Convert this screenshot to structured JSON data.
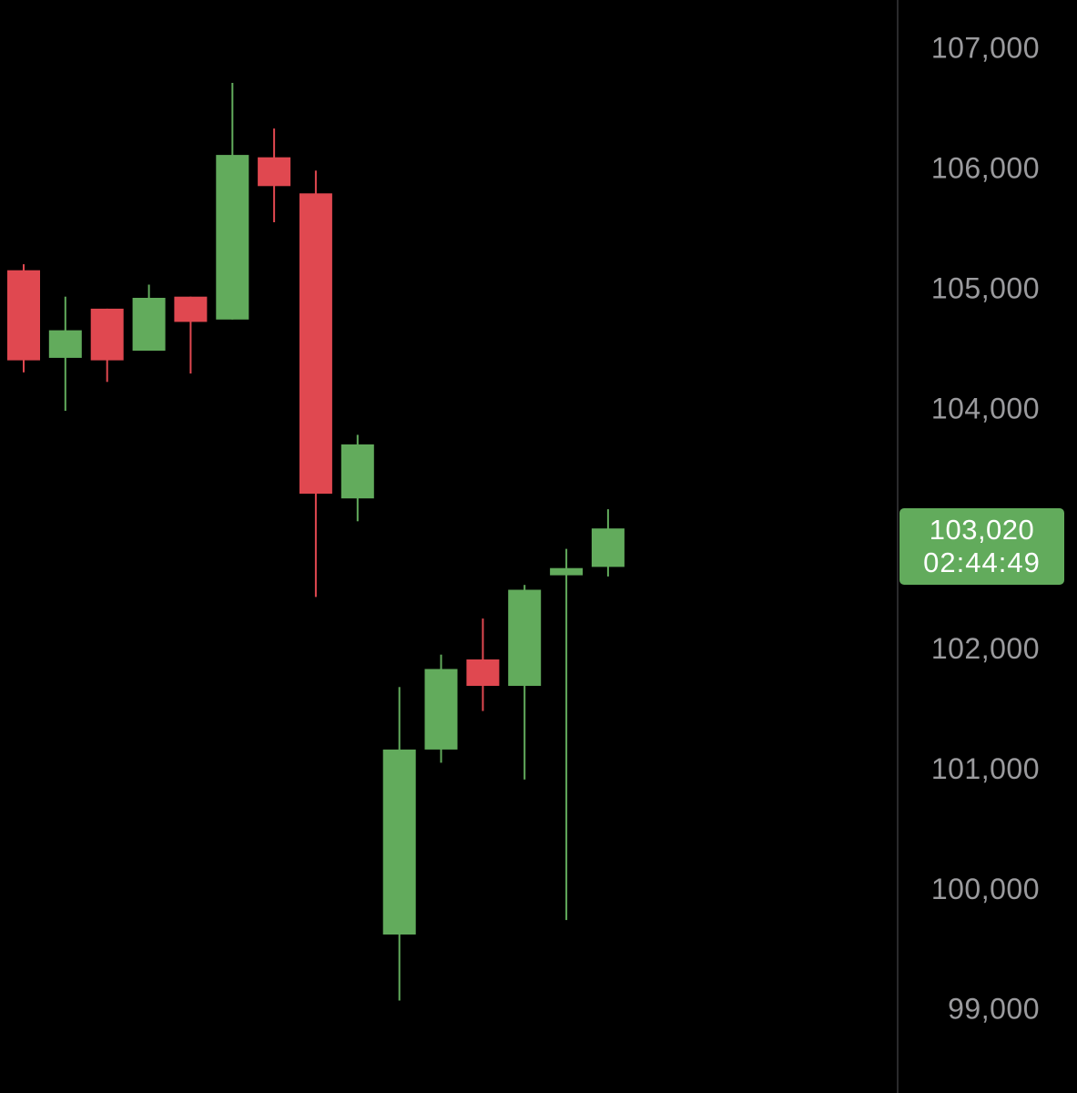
{
  "colors": {
    "background": "#000000",
    "up": "#62ab5c",
    "down": "#e04850",
    "axis_text": "#9b9b9e",
    "axis_line": "#2a2a2c"
  },
  "last_price": {
    "price": "103,020",
    "countdown": "02:44:49"
  },
  "chart_data": {
    "type": "candlestick",
    "y_ticks": [
      107000,
      106000,
      105000,
      104000,
      103000,
      102000,
      101000,
      100000,
      99000
    ],
    "y_tick_labels": [
      "107,000",
      "106,000",
      "105,000",
      "104,000",
      "103,000",
      "102,000",
      "101,000",
      "100,000",
      "99,000"
    ],
    "ylim": [
      98300,
      107400
    ],
    "candles": [
      {
        "open": 105150,
        "high": 105200,
        "low": 104300,
        "close": 104400
      },
      {
        "open": 104420,
        "high": 104930,
        "low": 103980,
        "close": 104650
      },
      {
        "open": 104830,
        "high": 104830,
        "low": 104220,
        "close": 104400
      },
      {
        "open": 104480,
        "high": 105030,
        "low": 104480,
        "close": 104920
      },
      {
        "open": 104930,
        "high": 104930,
        "low": 104290,
        "close": 104720
      },
      {
        "open": 104740,
        "high": 106710,
        "low": 104740,
        "close": 106110
      },
      {
        "open": 106090,
        "high": 106330,
        "low": 105550,
        "close": 105850
      },
      {
        "open": 105790,
        "high": 105980,
        "low": 102430,
        "close": 103290
      },
      {
        "open": 103250,
        "high": 103780,
        "low": 103060,
        "close": 103700
      },
      {
        "open": 99620,
        "high": 101680,
        "low": 99070,
        "close": 101160
      },
      {
        "open": 101160,
        "high": 101950,
        "low": 101050,
        "close": 101830
      },
      {
        "open": 101910,
        "high": 102250,
        "low": 101480,
        "close": 101690
      },
      {
        "open": 101690,
        "high": 102530,
        "low": 100910,
        "close": 102490
      },
      {
        "open": 102610,
        "high": 102830,
        "low": 99740,
        "close": 102670
      },
      {
        "open": 102680,
        "high": 103160,
        "low": 102600,
        "close": 103000
      }
    ]
  }
}
